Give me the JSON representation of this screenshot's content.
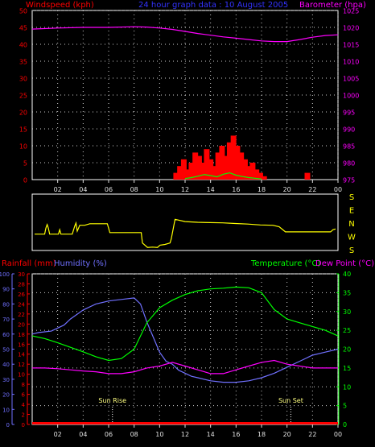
{
  "colors": {
    "background": "#000000",
    "frame": "#ffffff",
    "grid": "#cfcfcf",
    "tick": "#e0e0e0",
    "windspeed": "#ff0000",
    "gust": "#00ff00",
    "barometer": "#ff00ff",
    "title": "#3333ff",
    "direction": "#ffff00",
    "rainfall": "#ff0000",
    "humidity": "#7070ff",
    "temperature": "#00ff00",
    "dewpoint": "#ff00ff",
    "sun": "#ffff80"
  },
  "header": {
    "windspeed_label": "Windspeed (kph)",
    "title": "24 hour graph data : 10 August 2005",
    "barometer_label": "Barometer (hpa)"
  },
  "labels": {
    "rainfall": "Rainfall (mm)",
    "humidity": "Humidity (%)",
    "temperature": "Temperature (°C)",
    "dewpoint": "Dew Point (°C)",
    "sunrise": "Sun Rise",
    "sunset": "Sun Set"
  },
  "chart_data": [
    {
      "type": "bar",
      "panel": "wind-barometer",
      "x_ticks": [
        "02",
        "04",
        "06",
        "08",
        "10",
        "12",
        "14",
        "16",
        "18",
        "20",
        "22",
        "00"
      ],
      "xlim": [
        0,
        24
      ],
      "grid": true,
      "left_axis": {
        "label": "Windspeed (kph)",
        "ylim": [
          0,
          50
        ],
        "ticks": [
          "0",
          "5",
          "10",
          "15",
          "20",
          "25",
          "30",
          "35",
          "40",
          "45",
          "50"
        ]
      },
      "right_axis": {
        "label": "Barometer (hpa)",
        "ylim": [
          975,
          1025
        ],
        "ticks": [
          "975",
          "980",
          "985",
          "990",
          "995",
          "1000",
          "1005",
          "1010",
          "1015",
          "1020",
          "1025"
        ]
      },
      "series": [
        {
          "name": "Windspeed (kph)",
          "type": "bar",
          "x": [
            11.3,
            11.6,
            11.9,
            12.2,
            12.5,
            12.8,
            13.1,
            13.4,
            13.7,
            14.0,
            14.3,
            14.6,
            14.9,
            15.2,
            15.5,
            15.8,
            16.1,
            16.4,
            16.7,
            17.0,
            17.3,
            17.6,
            17.9,
            18.2,
            21.6
          ],
          "values": [
            2,
            4,
            6,
            3,
            5,
            8,
            7,
            5,
            9,
            6,
            4,
            8,
            10,
            7,
            11,
            13,
            10,
            8,
            6,
            4,
            5,
            3,
            2,
            1,
            2
          ]
        },
        {
          "name": "Gust",
          "type": "line",
          "x": [
            12.0,
            12.5,
            13.0,
            13.5,
            14.0,
            14.5,
            15.0,
            15.5,
            16.0,
            16.5,
            17.0,
            17.5,
            18.0
          ],
          "values": [
            0.3,
            0.6,
            1.0,
            1.5,
            1.2,
            0.8,
            1.6,
            2.0,
            1.3,
            0.9,
            0.6,
            0.4,
            0.2
          ]
        },
        {
          "name": "Barometer (hpa)",
          "type": "line",
          "x": [
            0,
            2,
            4,
            6,
            8,
            9,
            10,
            11,
            12,
            13,
            14,
            15,
            16,
            17,
            18,
            19,
            20,
            21,
            22,
            23,
            24
          ],
          "values": [
            1019.5,
            1019.8,
            1020,
            1020,
            1020.2,
            1020.1,
            1019.8,
            1019.4,
            1018.8,
            1018.2,
            1017.7,
            1017.2,
            1016.8,
            1016.4,
            1016,
            1015.8,
            1015.8,
            1016.4,
            1017.1,
            1017.6,
            1017.8
          ]
        }
      ]
    },
    {
      "type": "line",
      "panel": "wind-direction",
      "direction_labels": [
        "S",
        "E",
        "N",
        "W",
        "S"
      ],
      "ylim": [
        0,
        360
      ],
      "series": [
        {
          "name": "Wind direction",
          "x": [
            0,
            0.8,
            0.9,
            1.0,
            1.1,
            1.2,
            1.9,
            2.0,
            2.1,
            2.8,
            3.0,
            3.2,
            3.3,
            3.4,
            3.6,
            4.0,
            4.4,
            5.0,
            5.5,
            5.8,
            6.0,
            6.6,
            7.2,
            8.0,
            8.5,
            8.6,
            9.0,
            9.4,
            9.8,
            10.0,
            10.4,
            10.8,
            10.9,
            11.2,
            12,
            13,
            14,
            15,
            16,
            17,
            18,
            19,
            19.5,
            20,
            21,
            22,
            23,
            23.6,
            23.8,
            24
          ],
          "values": [
            100,
            100,
            140,
            165,
            140,
            100,
            100,
            130,
            100,
            100,
            100,
            155,
            175,
            120,
            160,
            160,
            170,
            170,
            170,
            170,
            110,
            110,
            110,
            110,
            110,
            40,
            10,
            12,
            10,
            25,
            30,
            40,
            70,
            200,
            185,
            180,
            178,
            176,
            172,
            168,
            162,
            160,
            150,
            115,
            115,
            115,
            115,
            115,
            130,
            135
          ]
        }
      ]
    },
    {
      "type": "line",
      "panel": "rain-humidity-temperature",
      "x_ticks": [
        "02",
        "04",
        "06",
        "08",
        "10",
        "12",
        "14",
        "16",
        "18",
        "20",
        "22",
        "00"
      ],
      "xlim": [
        0,
        24
      ],
      "grid": true,
      "axes": {
        "humidity": {
          "label": "Humidity (%)",
          "ylim": [
            0,
            100
          ],
          "ticks": [
            "0",
            "10",
            "20",
            "30",
            "40",
            "50",
            "60",
            "70",
            "80",
            "90",
            "100"
          ]
        },
        "rainfall": {
          "label": "Rainfall (mm)",
          "ylim": [
            0,
            30
          ],
          "ticks": [
            "0",
            "2",
            "4",
            "6",
            "8",
            "10",
            "12",
            "14",
            "16",
            "18",
            "20",
            "22",
            "24",
            "26",
            "28",
            "30"
          ]
        },
        "temperature": {
          "label": "Temperature (°C)",
          "ylim": [
            0,
            40
          ],
          "ticks": [
            "0",
            "5",
            "10",
            "15",
            "20",
            "25",
            "30",
            "35",
            "40"
          ]
        }
      },
      "annotations": [
        {
          "label": "Sun Rise",
          "x": 6.3
        },
        {
          "label": "Sun Set",
          "x": 20.3
        }
      ],
      "series": [
        {
          "name": "Rainfall (mm)",
          "axis": "rainfall",
          "x": [
            0,
            24
          ],
          "values": [
            0,
            0
          ]
        },
        {
          "name": "Humidity (%)",
          "axis": "humidity",
          "x": [
            0,
            0.5,
            1.5,
            2.5,
            3.0,
            4.0,
            5.0,
            6.0,
            7.0,
            8.0,
            8.5,
            9.0,
            9.5,
            10.0,
            10.5,
            11.0,
            11.5,
            12.0,
            12.5,
            13.0,
            14.0,
            15.0,
            16.0,
            17.0,
            18.0,
            19.0,
            20.0,
            21.0,
            22.0,
            23.0,
            24.0
          ],
          "values": [
            60,
            61,
            62,
            66,
            70,
            76,
            80,
            82,
            83,
            84,
            80,
            68,
            58,
            48,
            42,
            40,
            36,
            34,
            32,
            31,
            29,
            28,
            28,
            29,
            31,
            34,
            38,
            42,
            46,
            48,
            50
          ]
        },
        {
          "name": "Temperature (°C)",
          "axis": "temperature",
          "x": [
            0,
            1,
            2,
            3,
            4,
            5,
            6,
            7,
            8,
            9,
            10,
            11,
            12,
            13,
            14,
            15,
            16,
            17,
            18,
            19,
            20,
            21,
            22,
            23,
            24
          ],
          "values": [
            23.5,
            22.8,
            21.7,
            20.5,
            19.3,
            18,
            17,
            17.5,
            20,
            27,
            31,
            33,
            34.5,
            35.5,
            36,
            36.2,
            36.5,
            36.3,
            35,
            30.5,
            28,
            27,
            26,
            25,
            23.5
          ]
        },
        {
          "name": "Dew Point (°C)",
          "axis": "temperature",
          "x": [
            0,
            1,
            2,
            3,
            4,
            5,
            6,
            7,
            8,
            9,
            10,
            11,
            12,
            13,
            14,
            15,
            16,
            17,
            18,
            19,
            20,
            21,
            22,
            23,
            24
          ],
          "values": [
            15,
            15,
            14.8,
            14.5,
            14.2,
            14,
            13.5,
            13.5,
            14,
            15,
            15.5,
            16.5,
            15.5,
            14.5,
            13.5,
            13.5,
            14.5,
            15.5,
            16.5,
            17,
            16,
            15.5,
            15,
            15,
            15
          ]
        }
      ]
    }
  ]
}
